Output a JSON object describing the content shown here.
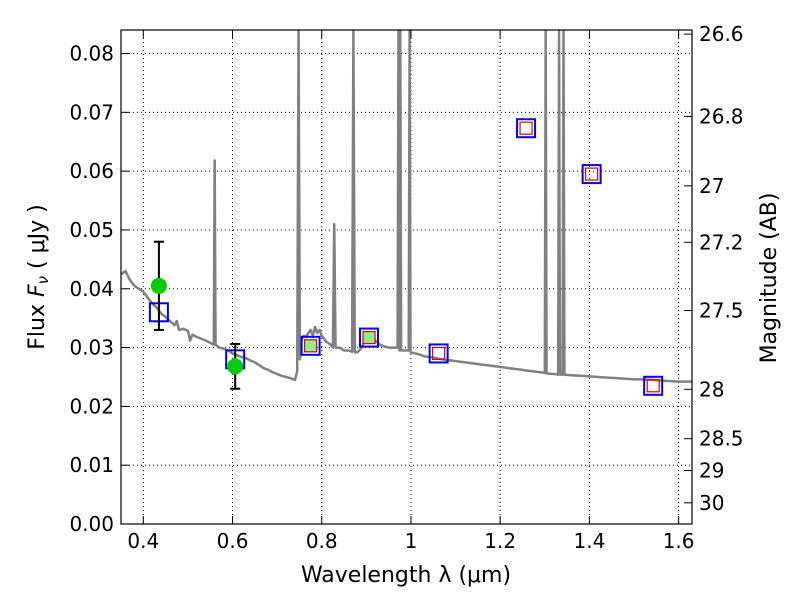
{
  "chart_data": {
    "type": "line",
    "xlabel": "Wavelength  λ (μm)",
    "ylabel_left": "Flux  F_ν  ( μJy )",
    "ylabel_right": "Magnitude (AB)",
    "xlim": [
      0.35,
      1.63
    ],
    "ylim": [
      0.0,
      0.084
    ],
    "grid": true,
    "x_ticks": [
      {
        "value": 0.4,
        "label": "0.4"
      },
      {
        "value": 0.6,
        "label": "0.6"
      },
      {
        "value": 0.8,
        "label": "0.8"
      },
      {
        "value": 1.0,
        "label": "1"
      },
      {
        "value": 1.2,
        "label": "1.2"
      },
      {
        "value": 1.4,
        "label": "1.4"
      },
      {
        "value": 1.6,
        "label": "1.6"
      }
    ],
    "y_ticks": [
      {
        "value": 0.0,
        "label": "0.00"
      },
      {
        "value": 0.01,
        "label": "0.01"
      },
      {
        "value": 0.02,
        "label": "0.02"
      },
      {
        "value": 0.03,
        "label": "0.03"
      },
      {
        "value": 0.04,
        "label": "0.04"
      },
      {
        "value": 0.05,
        "label": "0.05"
      },
      {
        "value": 0.06,
        "label": "0.06"
      },
      {
        "value": 0.07,
        "label": "0.07"
      },
      {
        "value": 0.08,
        "label": "0.08"
      }
    ],
    "mag_ticks": [
      {
        "flux": 0.0833,
        "label": "26.6"
      },
      {
        "flux": 0.0693,
        "label": "26.8"
      },
      {
        "flux": 0.0575,
        "label": "27"
      },
      {
        "flux": 0.0479,
        "label": "27.2"
      },
      {
        "flux": 0.0363,
        "label": "27.5"
      },
      {
        "flux": 0.0229,
        "label": "28"
      },
      {
        "flux": 0.0145,
        "label": "28.5"
      },
      {
        "flux": 0.0091,
        "label": "29"
      },
      {
        "flux": 0.0036,
        "label": "30"
      }
    ],
    "series": [
      {
        "kind": "sed_model",
        "color": "#808080",
        "points": [
          [
            0.35,
            0.0425
          ],
          [
            0.36,
            0.043
          ],
          [
            0.37,
            0.0415
          ],
          [
            0.38,
            0.0405
          ],
          [
            0.39,
            0.04
          ],
          [
            0.4,
            0.0395
          ],
          [
            0.41,
            0.0385
          ],
          [
            0.42,
            0.0375
          ],
          [
            0.43,
            0.0368
          ],
          [
            0.44,
            0.0358
          ],
          [
            0.45,
            0.0352
          ],
          [
            0.46,
            0.0345
          ],
          [
            0.47,
            0.0338
          ],
          [
            0.475,
            0.0345
          ],
          [
            0.48,
            0.033
          ],
          [
            0.49,
            0.0332
          ],
          [
            0.5,
            0.0328
          ],
          [
            0.505,
            0.0312
          ],
          [
            0.51,
            0.0322
          ],
          [
            0.52,
            0.0318
          ],
          [
            0.53,
            0.0315
          ],
          [
            0.54,
            0.0312
          ],
          [
            0.55,
            0.0308
          ],
          [
            0.558,
            0.0305
          ],
          [
            0.56,
            0.0618
          ],
          [
            0.562,
            0.0305
          ],
          [
            0.57,
            0.03
          ],
          [
            0.58,
            0.0298
          ],
          [
            0.59,
            0.0295
          ],
          [
            0.6,
            0.029
          ],
          [
            0.61,
            0.0287
          ],
          [
            0.62,
            0.0284
          ],
          [
            0.63,
            0.0282
          ],
          [
            0.64,
            0.0278
          ],
          [
            0.65,
            0.0275
          ],
          [
            0.66,
            0.027
          ],
          [
            0.67,
            0.0265
          ],
          [
            0.68,
            0.0262
          ],
          [
            0.69,
            0.0258
          ],
          [
            0.7,
            0.0255
          ],
          [
            0.71,
            0.0252
          ],
          [
            0.72,
            0.025
          ],
          [
            0.73,
            0.0248
          ],
          [
            0.74,
            0.0245
          ],
          [
            0.745,
            0.026
          ],
          [
            0.748,
            0.084
          ],
          [
            0.751,
            0.028
          ],
          [
            0.755,
            0.0315
          ],
          [
            0.76,
            0.032
          ],
          [
            0.765,
            0.0318
          ],
          [
            0.77,
            0.0325
          ],
          [
            0.775,
            0.033
          ],
          [
            0.78,
            0.032
          ],
          [
            0.785,
            0.0335
          ],
          [
            0.79,
            0.0325
          ],
          [
            0.795,
            0.033
          ],
          [
            0.8,
            0.032
          ],
          [
            0.81,
            0.031
          ],
          [
            0.82,
            0.0305
          ],
          [
            0.825,
            0.03
          ],
          [
            0.828,
            0.051
          ],
          [
            0.831,
            0.03
          ],
          [
            0.84,
            0.03
          ],
          [
            0.85,
            0.0295
          ],
          [
            0.86,
            0.0295
          ],
          [
            0.868,
            0.0293
          ],
          [
            0.871,
            0.084
          ],
          [
            0.874,
            0.0292
          ],
          [
            0.88,
            0.0292
          ],
          [
            0.89,
            0.03
          ],
          [
            0.895,
            0.031
          ],
          [
            0.9,
            0.0315
          ],
          [
            0.905,
            0.0312
          ],
          [
            0.91,
            0.0318
          ],
          [
            0.915,
            0.031
          ],
          [
            0.92,
            0.0312
          ],
          [
            0.93,
            0.0305
          ],
          [
            0.94,
            0.0302
          ],
          [
            0.95,
            0.03
          ],
          [
            0.96,
            0.03
          ],
          [
            0.97,
            0.03
          ],
          [
            0.972,
            0.084
          ],
          [
            0.974,
            0.0295
          ],
          [
            0.976,
            0.084
          ],
          [
            0.978,
            0.0295
          ],
          [
            0.985,
            0.0295
          ],
          [
            0.995,
            0.0295
          ],
          [
            0.997,
            0.084
          ],
          [
            0.999,
            0.0292
          ],
          [
            1.01,
            0.029
          ],
          [
            1.02,
            0.0288
          ],
          [
            1.03,
            0.0285
          ],
          [
            1.05,
            0.0283
          ],
          [
            1.07,
            0.028
          ],
          [
            1.09,
            0.0278
          ],
          [
            1.11,
            0.0276
          ],
          [
            1.13,
            0.0274
          ],
          [
            1.15,
            0.0272
          ],
          [
            1.17,
            0.027
          ],
          [
            1.19,
            0.0268
          ],
          [
            1.21,
            0.0266
          ],
          [
            1.23,
            0.0264
          ],
          [
            1.25,
            0.0262
          ],
          [
            1.27,
            0.026
          ],
          [
            1.29,
            0.0258
          ],
          [
            1.3,
            0.0257
          ],
          [
            1.302,
            0.084
          ],
          [
            1.304,
            0.0256
          ],
          [
            1.32,
            0.0255
          ],
          [
            1.33,
            0.0254
          ],
          [
            1.332,
            0.084
          ],
          [
            1.334,
            0.0254
          ],
          [
            1.34,
            0.0254
          ],
          [
            1.342,
            0.084
          ],
          [
            1.344,
            0.0254
          ],
          [
            1.36,
            0.0253
          ],
          [
            1.38,
            0.0252
          ],
          [
            1.4,
            0.0251
          ],
          [
            1.42,
            0.025
          ],
          [
            1.44,
            0.0249
          ],
          [
            1.46,
            0.0248
          ],
          [
            1.48,
            0.0247
          ],
          [
            1.5,
            0.0246
          ],
          [
            1.52,
            0.0246
          ],
          [
            1.54,
            0.0245
          ],
          [
            1.56,
            0.0244
          ],
          [
            1.58,
            0.0243
          ],
          [
            1.6,
            0.0242
          ],
          [
            1.63,
            0.0242
          ]
        ]
      },
      {
        "kind": "observed_photometry",
        "color": "#00cc00",
        "points": [
          {
            "x": 0.435,
            "y": 0.0405,
            "err_low": 0.0075,
            "err_high": 0.0075
          },
          {
            "x": 0.606,
            "y": 0.0268,
            "err_low": 0.0038,
            "err_high": 0.0038
          }
        ]
      },
      {
        "kind": "model_photometry",
        "color": "#0000ee",
        "points": [
          [
            0.435,
            0.036
          ],
          [
            0.606,
            0.028
          ],
          [
            0.775,
            0.0303
          ],
          [
            0.906,
            0.0317
          ],
          [
            1.062,
            0.029
          ],
          [
            1.258,
            0.0673
          ],
          [
            1.405,
            0.0595
          ],
          [
            1.543,
            0.0235
          ]
        ]
      },
      {
        "kind": "expected_photometry",
        "color": "#dd0000",
        "points": [
          [
            0.775,
            0.0303
          ],
          [
            0.906,
            0.0317
          ],
          [
            1.062,
            0.029
          ],
          [
            1.258,
            0.0673
          ],
          [
            1.405,
            0.0595
          ],
          [
            1.543,
            0.0235
          ]
        ]
      },
      {
        "kind": "filter_markers",
        "color": "#90ee90",
        "points": [
          [
            0.775,
            0.0303
          ],
          [
            0.906,
            0.0317
          ]
        ]
      }
    ]
  }
}
